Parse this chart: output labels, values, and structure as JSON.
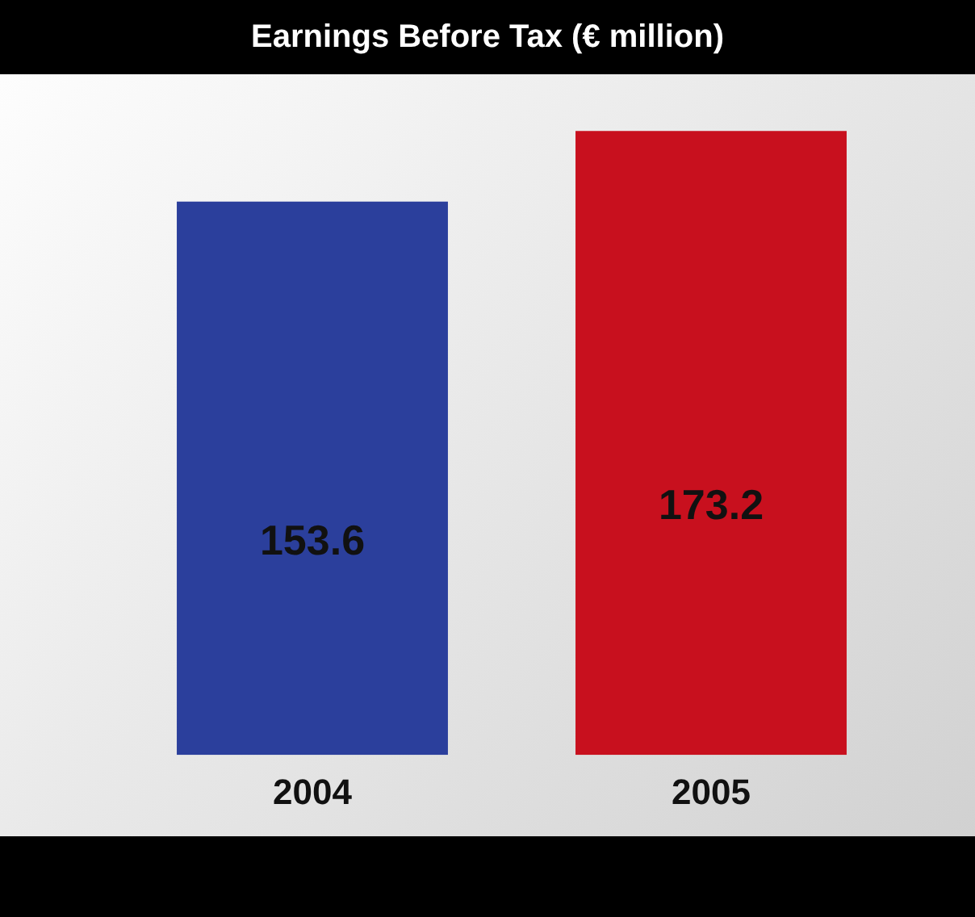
{
  "chart_data": {
    "type": "bar",
    "title": "Earnings Before Tax (€ million)",
    "categories": [
      "2004",
      "2005"
    ],
    "values": [
      153.6,
      173.2
    ],
    "colors": [
      "#2b3f9c",
      "#c8101e"
    ],
    "data_labels": true,
    "grid": false,
    "legend": false
  }
}
